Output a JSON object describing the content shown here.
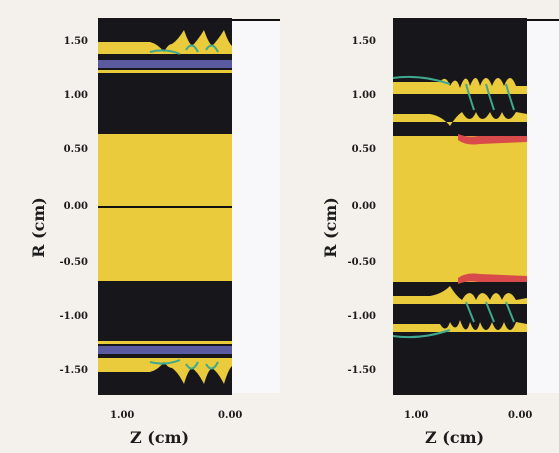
{
  "y_axis_label": "R (cm)",
  "x_axis_label": "Z (cm)",
  "y_ticks": [
    "1.50",
    "1.00",
    "0.50",
    "0.00",
    "-0.50",
    "-1.00",
    "-1.50"
  ],
  "x_ticks": [
    "1.00",
    "0.00"
  ],
  "colors": {
    "background": "#f4f1ec",
    "plasma": "#e9cb3b",
    "void": "#16161b",
    "liner": "#5a5aa0",
    "edge": "#d94a4a",
    "turbulence": "#3fa88e"
  }
}
